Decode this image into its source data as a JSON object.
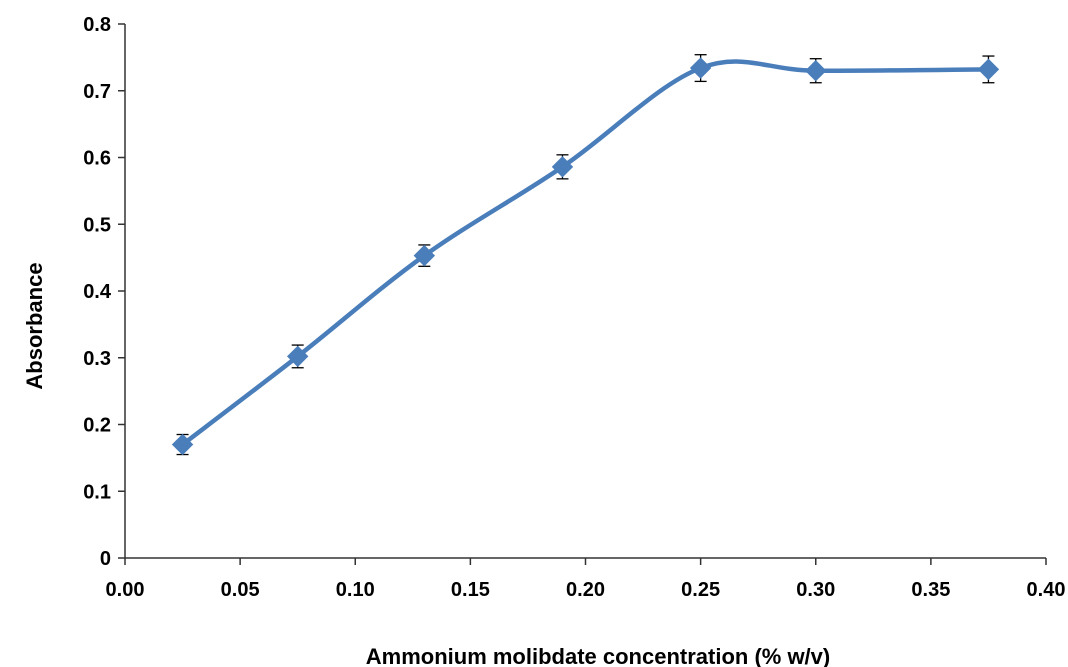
{
  "chart_data": {
    "type": "line",
    "title": "",
    "xlabel": "Ammonium molibdate concentration (% w/v)",
    "ylabel": "Absorbance",
    "xlim": [
      0.0,
      0.4
    ],
    "ylim": [
      0,
      0.8
    ],
    "x_ticks": [
      "0.00",
      "0.05",
      "0.10",
      "0.15",
      "0.20",
      "0.25",
      "0.30",
      "0.35",
      "0.40"
    ],
    "y_ticks": [
      "0",
      "0.1",
      "0.2",
      "0.3",
      "0.4",
      "0.5",
      "0.6",
      "0.7",
      "0.8"
    ],
    "grid": false,
    "legend": "none",
    "smoothed": true,
    "marker": "diamond",
    "series": [
      {
        "color": "#4a7ebb",
        "x": [
          0.025,
          0.075,
          0.13,
          0.19,
          0.25,
          0.3,
          0.375
        ],
        "values": [
          0.17,
          0.302,
          0.453,
          0.586,
          0.734,
          0.73,
          0.732
        ],
        "error": [
          0.015,
          0.017,
          0.016,
          0.018,
          0.02,
          0.018,
          0.02
        ]
      }
    ]
  }
}
